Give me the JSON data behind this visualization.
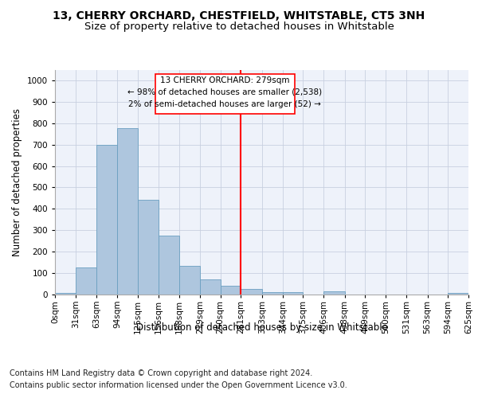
{
  "title1": "13, CHERRY ORCHARD, CHESTFIELD, WHITSTABLE, CT5 3NH",
  "title2": "Size of property relative to detached houses in Whitstable",
  "xlabel": "Distribution of detached houses by size in Whitstable",
  "ylabel": "Number of detached properties",
  "footnote1": "Contains HM Land Registry data © Crown copyright and database right 2024.",
  "footnote2": "Contains public sector information licensed under the Open Government Licence v3.0.",
  "annotation_title": "13 CHERRY ORCHARD: 279sqm",
  "annotation_line1": "← 98% of detached houses are smaller (2,538)",
  "annotation_line2": "2% of semi-detached houses are larger (52) →",
  "bar_color": "#aec6de",
  "bar_edge_color": "#6a9fc0",
  "vline_color": "red",
  "annotation_box_color": "red",
  "background_color": "#eef2fa",
  "grid_color": "#c8d0e0",
  "bin_edges": [
    0,
    31,
    63,
    94,
    125,
    156,
    188,
    219,
    250,
    281,
    313,
    344,
    375,
    406,
    438,
    469,
    500,
    531,
    563,
    594,
    625
  ],
  "bar_heights": [
    8,
    127,
    700,
    775,
    443,
    275,
    132,
    70,
    40,
    25,
    13,
    10,
    0,
    14,
    0,
    0,
    0,
    0,
    0,
    9
  ],
  "ylim": [
    0,
    1050
  ],
  "yticks": [
    0,
    100,
    200,
    300,
    400,
    500,
    600,
    700,
    800,
    900,
    1000
  ],
  "title_fontsize": 10,
  "subtitle_fontsize": 9.5,
  "axis_label_fontsize": 8.5,
  "tick_fontsize": 7.5,
  "annotation_fontsize": 7.5,
  "footnote_fontsize": 7
}
